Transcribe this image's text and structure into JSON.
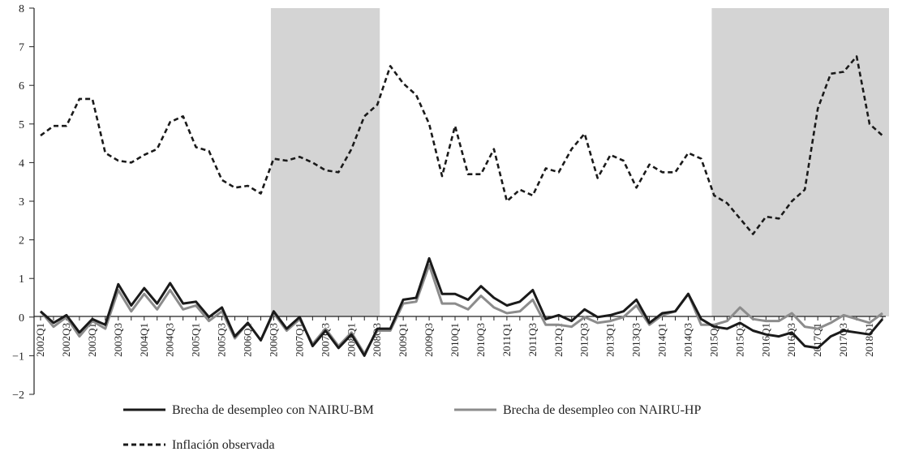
{
  "chart_data": {
    "type": "line",
    "title": "",
    "xlabel": "",
    "ylabel": "",
    "ylim": [
      -2,
      8
    ],
    "yticks": [
      -2,
      -1,
      0,
      1,
      2,
      3,
      4,
      5,
      6,
      7,
      8
    ],
    "grid": false,
    "legend_position": "bottom",
    "shaded_periods": [
      [
        "2006Q3",
        "2008Q3"
      ],
      [
        "2015Q1",
        "2018Q2"
      ]
    ],
    "x": [
      "2002Q1",
      "2002Q2",
      "2002Q3",
      "2002Q4",
      "2003Q1",
      "2003Q2",
      "2003Q3",
      "2003Q4",
      "2004Q1",
      "2004Q2",
      "2004Q3",
      "2004Q4",
      "2005Q1",
      "2005Q2",
      "2005Q3",
      "2005Q4",
      "2006Q1",
      "2006Q2",
      "2006Q3",
      "2006Q4",
      "2007Q1",
      "2007Q2",
      "2007Q3",
      "2007Q4",
      "2008Q1",
      "2008Q2",
      "2008Q3",
      "2008Q4",
      "2009Q1",
      "2009Q2",
      "2009Q3",
      "2009Q4",
      "2010Q1",
      "2010Q2",
      "2010Q3",
      "2010Q4",
      "2011Q1",
      "2011Q2",
      "2011Q3",
      "2011Q4",
      "2012Q1",
      "2012Q2",
      "2012Q3",
      "2012Q4",
      "2013Q1",
      "2013Q2",
      "2013Q3",
      "2013Q4",
      "2014Q1",
      "2014Q2",
      "2014Q3",
      "2014Q4",
      "2015Q1",
      "2015Q2",
      "2015Q3",
      "2015Q4",
      "2016Q1",
      "2016Q2",
      "2016Q3",
      "2016Q4",
      "2017Q1",
      "2017Q2",
      "2017Q3",
      "2017Q4",
      "2018Q1",
      "2018Q2"
    ],
    "x_tick_labels": [
      "2002Q1",
      "2002Q3",
      "2003Q1",
      "2003Q3",
      "2004Q1",
      "2004Q3",
      "2005Q1",
      "2005Q3",
      "2006Q1",
      "2006Q3",
      "2007Q1",
      "2007Q3",
      "2008Q1",
      "2008Q3",
      "2009Q1",
      "2009Q3",
      "2010Q1",
      "2010Q3",
      "2011Q1",
      "2011Q3",
      "2012Q1",
      "2012Q3",
      "2013Q1",
      "2013Q3",
      "2014Q1",
      "2014Q3",
      "2015Q1",
      "2015Q3",
      "2016Q1",
      "2016Q3",
      "2017Q1",
      "2017Q3",
      "2018Q1"
    ],
    "series": [
      {
        "name": "Brecha de desempleo con NAIRU-BM",
        "color": "#1a1a1a",
        "style": "solid",
        "values": [
          0.15,
          -0.15,
          0.05,
          -0.4,
          -0.05,
          -0.2,
          0.85,
          0.3,
          0.75,
          0.35,
          0.88,
          0.35,
          0.4,
          0.0,
          0.25,
          -0.5,
          -0.15,
          -0.6,
          0.15,
          -0.3,
          0.0,
          -0.75,
          -0.35,
          -0.8,
          -0.45,
          -1.0,
          -0.3,
          -0.3,
          0.45,
          0.5,
          1.52,
          0.6,
          0.6,
          0.45,
          0.8,
          0.5,
          0.3,
          0.4,
          0.7,
          -0.05,
          0.05,
          -0.1,
          0.2,
          0.0,
          0.05,
          0.15,
          0.45,
          -0.15,
          0.1,
          0.15,
          0.6,
          -0.05,
          -0.25,
          -0.3,
          -0.15,
          -0.35,
          -0.45,
          -0.5,
          -0.4,
          -0.75,
          -0.8,
          -0.5,
          -0.35,
          -0.4,
          -0.45,
          -0.05
        ]
      },
      {
        "name": "Brecha de desempleo con NAIRU-HP",
        "color": "#8c8c8c",
        "style": "solid",
        "values": [
          0.15,
          -0.25,
          0.0,
          -0.5,
          -0.1,
          -0.3,
          0.7,
          0.15,
          0.6,
          0.2,
          0.7,
          0.2,
          0.3,
          -0.1,
          0.15,
          -0.55,
          -0.15,
          -0.6,
          0.1,
          -0.35,
          -0.05,
          -0.7,
          -0.3,
          -0.75,
          -0.4,
          -0.95,
          -0.35,
          -0.35,
          0.35,
          0.4,
          1.35,
          0.35,
          0.35,
          0.2,
          0.55,
          0.25,
          0.1,
          0.15,
          0.45,
          -0.2,
          -0.2,
          -0.25,
          0.0,
          -0.15,
          -0.1,
          0.0,
          0.3,
          -0.2,
          0.05,
          0.15,
          0.6,
          -0.2,
          -0.2,
          -0.1,
          0.25,
          -0.05,
          -0.1,
          -0.1,
          0.1,
          -0.25,
          -0.3,
          -0.15,
          0.05,
          -0.05,
          -0.15,
          0.1
        ]
      },
      {
        "name": "Inflación observada",
        "color": "#1a1a1a",
        "style": "dashed",
        "values": [
          4.7,
          4.95,
          4.95,
          5.65,
          5.65,
          4.25,
          4.05,
          4.0,
          4.2,
          4.35,
          5.05,
          5.2,
          4.4,
          4.3,
          3.55,
          3.35,
          3.4,
          3.2,
          4.1,
          4.05,
          4.15,
          4.0,
          3.8,
          3.75,
          4.35,
          5.2,
          5.5,
          6.5,
          6.05,
          5.75,
          5.0,
          3.65,
          4.95,
          3.7,
          3.7,
          4.35,
          3.0,
          3.3,
          3.15,
          3.85,
          3.75,
          4.35,
          4.75,
          3.6,
          4.2,
          4.05,
          3.35,
          3.95,
          3.75,
          3.75,
          4.25,
          4.1,
          3.15,
          2.95,
          2.55,
          2.15,
          2.6,
          2.55,
          3.0,
          3.3,
          5.4,
          6.3,
          6.35,
          6.75,
          5.0,
          4.7
        ]
      }
    ],
    "legend": [
      {
        "label": "Brecha de desempleo con NAIRU-BM",
        "color": "#1a1a1a",
        "style": "solid"
      },
      {
        "label": "Brecha de desempleo con NAIRU-HP",
        "color": "#8c8c8c",
        "style": "solid"
      },
      {
        "label": "Inflación observada",
        "color": "#1a1a1a",
        "style": "dashed"
      }
    ]
  }
}
